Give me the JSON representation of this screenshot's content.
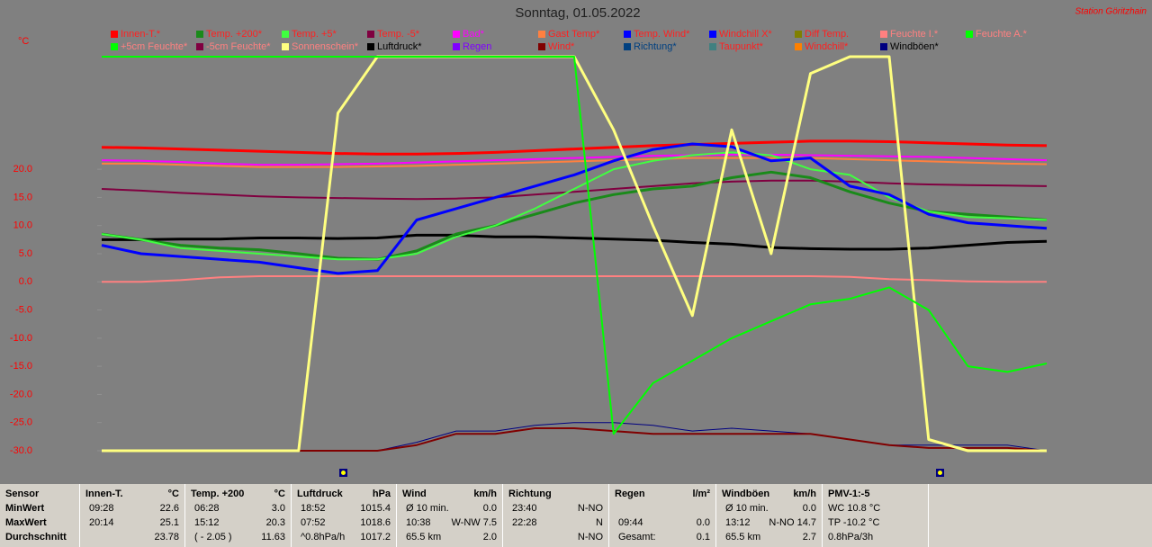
{
  "chart_data": {
    "type": "line",
    "title": "Sonntag, 01.05.2022",
    "station": "Station Göritzhain",
    "y_unit": "°C",
    "ylim": [
      -30,
      40
    ],
    "yticks": [
      {
        "value": -30,
        "label": "-30.0"
      },
      {
        "value": -25,
        "label": "-25.0"
      },
      {
        "value": -20,
        "label": "-20.0"
      },
      {
        "value": -15,
        "label": "-15.0"
      },
      {
        "value": -10,
        "label": "-10.0"
      },
      {
        "value": -5,
        "label": "-5.0"
      },
      {
        "value": 0,
        "label": "0.0"
      },
      {
        "value": 5,
        "label": "5.0"
      },
      {
        "value": 10,
        "label": "10.0"
      },
      {
        "value": 15,
        "label": "15.0"
      },
      {
        "value": 20,
        "label": "20.0"
      }
    ],
    "series": [
      {
        "name": "Innen-T.*",
        "color": "#ff0000",
        "label_color": "#ff2020",
        "line_width": 3,
        "values": [
          23.9,
          23.8,
          23.6,
          23.4,
          23.2,
          23.0,
          22.8,
          22.7,
          22.7,
          22.8,
          23.0,
          23.3,
          23.6,
          23.9,
          24.2,
          24.4,
          24.6,
          24.8,
          25.0,
          25.0,
          24.9,
          24.7,
          24.5,
          24.3,
          24.2
        ]
      },
      {
        "name": "Temp. +200*",
        "color": "#1a8a1a",
        "label_color": "#ff2020",
        "line_width": 3,
        "values": [
          8.5,
          7.5,
          6.5,
          6.0,
          5.7,
          5.0,
          4.2,
          4.0,
          5.5,
          8.5,
          10.0,
          12.0,
          14.0,
          15.5,
          16.5,
          17.0,
          18.5,
          19.5,
          18.5,
          16.0,
          14.0,
          12.5,
          12.0,
          11.5,
          11.0
        ]
      },
      {
        "name": "Temp. +5*",
        "color": "#40ff40",
        "label_color": "#ff2020",
        "line_width": 2,
        "values": [
          8.5,
          7.5,
          6.0,
          5.5,
          5.0,
          4.5,
          4.0,
          4.0,
          5.0,
          8.0,
          10.0,
          13.0,
          16.5,
          20.0,
          21.5,
          22.5,
          23.0,
          22.5,
          20.0,
          19.0,
          15.0,
          12.5,
          11.5,
          11.3,
          11.0
        ]
      },
      {
        "name": "Temp. -5*",
        "color": "#800040",
        "label_color": "#ff2020",
        "line_width": 2,
        "values": [
          16.5,
          16.2,
          15.8,
          15.5,
          15.2,
          15.0,
          14.9,
          14.8,
          14.7,
          14.8,
          15.0,
          15.5,
          16.0,
          16.5,
          17.0,
          17.5,
          17.8,
          18.0,
          18.0,
          17.8,
          17.5,
          17.3,
          17.2,
          17.1,
          17.0
        ]
      },
      {
        "name": "Bad*",
        "color": "#ff00ff",
        "label_color": "#ff00ff",
        "line_width": 2,
        "values": [
          21.6,
          21.5,
          21.3,
          21.0,
          20.8,
          20.8,
          20.9,
          21.0,
          21.2,
          21.4,
          21.6,
          21.8,
          22.0,
          22.2,
          22.4,
          22.5,
          22.6,
          22.6,
          22.5,
          22.4,
          22.3,
          22.2,
          22.0,
          21.8,
          21.6
        ]
      },
      {
        "name": "Gast Temp*",
        "color": "#ff8040",
        "label_color": "#ff2020",
        "line_width": 2,
        "values": [
          21.0,
          21.0,
          20.8,
          20.6,
          20.4,
          20.4,
          20.4,
          20.5,
          20.6,
          20.8,
          21.0,
          21.2,
          21.4,
          21.6,
          21.8,
          22.0,
          22.0,
          22.0,
          22.0,
          21.8,
          21.6,
          21.4,
          21.2,
          21.0,
          20.9
        ]
      },
      {
        "name": "Temp. Wind*",
        "color": "#0000ff",
        "label_color": "#ff2020",
        "line_width": 3,
        "values": [
          6.5,
          5.0,
          4.5,
          4.0,
          3.5,
          2.5,
          1.5,
          2.0,
          11.0,
          13.0,
          15.0,
          17.0,
          19.0,
          21.5,
          23.5,
          24.5,
          24.0,
          21.5,
          22.0,
          17.0,
          15.5,
          12.0,
          10.5,
          10.0,
          9.5
        ]
      },
      {
        "name": "Windchill X*",
        "color": "#0000ff",
        "label_color": "#ff2020"
      },
      {
        "name": "Diff Temp.",
        "color": "#808000",
        "label_color": "#ff2020"
      },
      {
        "name": "Feuchte I.*",
        "color": "#ff8080",
        "label_color": "#ff8080",
        "line_width": 2,
        "values": [
          0,
          0,
          0.3,
          0.8,
          1.0,
          1.0,
          1.0,
          1.0,
          1.0,
          1.0,
          1.0,
          1.0,
          1.0,
          1.0,
          1.0,
          1.0,
          1.0,
          1.0,
          1.0,
          0.9,
          0.5,
          0.3,
          0.1,
          0,
          0
        ]
      },
      {
        "name": "Feuchte A.*",
        "color": "#00ff00",
        "label_color": "#ff8080",
        "line_width": 2,
        "values": [
          40,
          40,
          40,
          40,
          40,
          40,
          40,
          40,
          40,
          40,
          40,
          40,
          40,
          -27,
          -18,
          -14,
          -10,
          -7,
          -4,
          -3,
          -1,
          -5,
          -15,
          -16,
          -14.5
        ]
      },
      {
        "name": "+5cm Feuchte*",
        "color": "#00ff00",
        "label_color": "#ff8080"
      },
      {
        "name": "-5cm Feuchte*",
        "color": "#800040",
        "label_color": "#ff8080"
      },
      {
        "name": "Sonnenschein*",
        "color": "#ffff80",
        "label_color": "#ff8080",
        "line_width": 3,
        "values": [
          -30,
          -30,
          -30,
          -30,
          -30,
          -30,
          30,
          40,
          40,
          40,
          40,
          40,
          40,
          27,
          10,
          -6,
          27,
          5,
          37,
          40,
          40,
          -28,
          -30,
          -30,
          -30
        ]
      },
      {
        "name": "Luftdruck*",
        "color": "#000000",
        "label_color": "#000000",
        "line_width": 3,
        "values": [
          7.5,
          7.5,
          7.6,
          7.6,
          7.8,
          7.8,
          7.7,
          7.8,
          8.3,
          8.3,
          8.0,
          8.0,
          7.8,
          7.6,
          7.4,
          7.0,
          6.7,
          6.1,
          5.9,
          5.8,
          5.8,
          6.0,
          6.5,
          7.0,
          7.2
        ]
      },
      {
        "name": "Regen",
        "color": "#8000ff",
        "label_color": "#8000ff"
      },
      {
        "name": "Wind*",
        "color": "#800000",
        "label_color": "#ff2020",
        "line_width": 2,
        "values": [
          -30,
          -30,
          -30,
          -30,
          -30,
          -30,
          -30,
          -30,
          -29,
          -27,
          -27,
          -26,
          -26,
          -26.5,
          -27,
          -27,
          -27,
          -27,
          -27,
          -28,
          -29,
          -29.5,
          -29.5,
          -29.5,
          -30
        ]
      },
      {
        "name": "Richtung*",
        "color": "#004080",
        "label_color": "#004080"
      },
      {
        "name": "Taupunkt*",
        "color": "#408080",
        "label_color": "#ff2020"
      },
      {
        "name": "Windchill*",
        "color": "#ff8000",
        "label_color": "#ff2020"
      },
      {
        "name": "Windböen*",
        "color": "#000080",
        "label_color": "#000000",
        "line_width": 1,
        "values": [
          -30,
          -30,
          -30,
          -30,
          -30,
          -30,
          -30,
          -30,
          -28.5,
          -26.5,
          -26.5,
          -25.5,
          -25,
          -25,
          -25.5,
          -26.5,
          -26,
          -26.5,
          -27,
          -28,
          -29,
          -29,
          -29,
          -29,
          -30
        ]
      }
    ]
  },
  "stats": {
    "row_labels": [
      "Sensor",
      "MinWert",
      "MaxWert",
      "Durchschnitt"
    ],
    "columns": [
      {
        "title": "Innen-T.",
        "unit": "°C",
        "cells": [
          [
            "09:28",
            "22.6"
          ],
          [
            "20:14",
            "25.1"
          ],
          [
            null,
            "23.78"
          ]
        ]
      },
      {
        "title": "Temp. +200",
        "unit": "°C",
        "cells": [
          [
            "06:28",
            "3.0"
          ],
          [
            "15:12",
            "20.3"
          ],
          [
            "( - 2.05 )",
            "11.63"
          ]
        ]
      },
      {
        "title": "Luftdruck",
        "unit": "hPa",
        "cells": [
          [
            "18:52",
            "1015.4"
          ],
          [
            "07:52",
            "1018.6"
          ],
          [
            "^0.8hPa/h",
            "1017.2"
          ]
        ]
      },
      {
        "title": "Wind",
        "unit": "km/h",
        "cells": [
          [
            "Ø 10 min.",
            "0.0"
          ],
          [
            "10:38",
            "W-NW 7.5"
          ],
          [
            "65.5 km",
            "2.0"
          ]
        ]
      },
      {
        "title": "Richtung",
        "unit": null,
        "cells": [
          [
            "23:40",
            "N-NO"
          ],
          [
            "22:28",
            "N"
          ],
          [
            null,
            "N-NO"
          ]
        ]
      },
      {
        "title": "Regen",
        "unit": "l/m²",
        "cells": [
          [
            null,
            null
          ],
          [
            "09:44",
            "0.0"
          ],
          [
            "Gesamt:",
            "0.1"
          ]
        ]
      },
      {
        "title": "Windböen",
        "unit": "km/h",
        "cells": [
          [
            "Ø 10 min.",
            "0.0"
          ],
          [
            "13:12",
            "N-NO 14.7"
          ],
          [
            "65.5 km",
            "2.7"
          ]
        ]
      },
      {
        "title": "PMV-1:-5",
        "unit": null,
        "cells": [
          [
            "WC 10.8 °C",
            null
          ],
          [
            "TP -10.2 °C",
            null
          ],
          [
            "0.8hPa/3h",
            null
          ]
        ]
      }
    ]
  }
}
